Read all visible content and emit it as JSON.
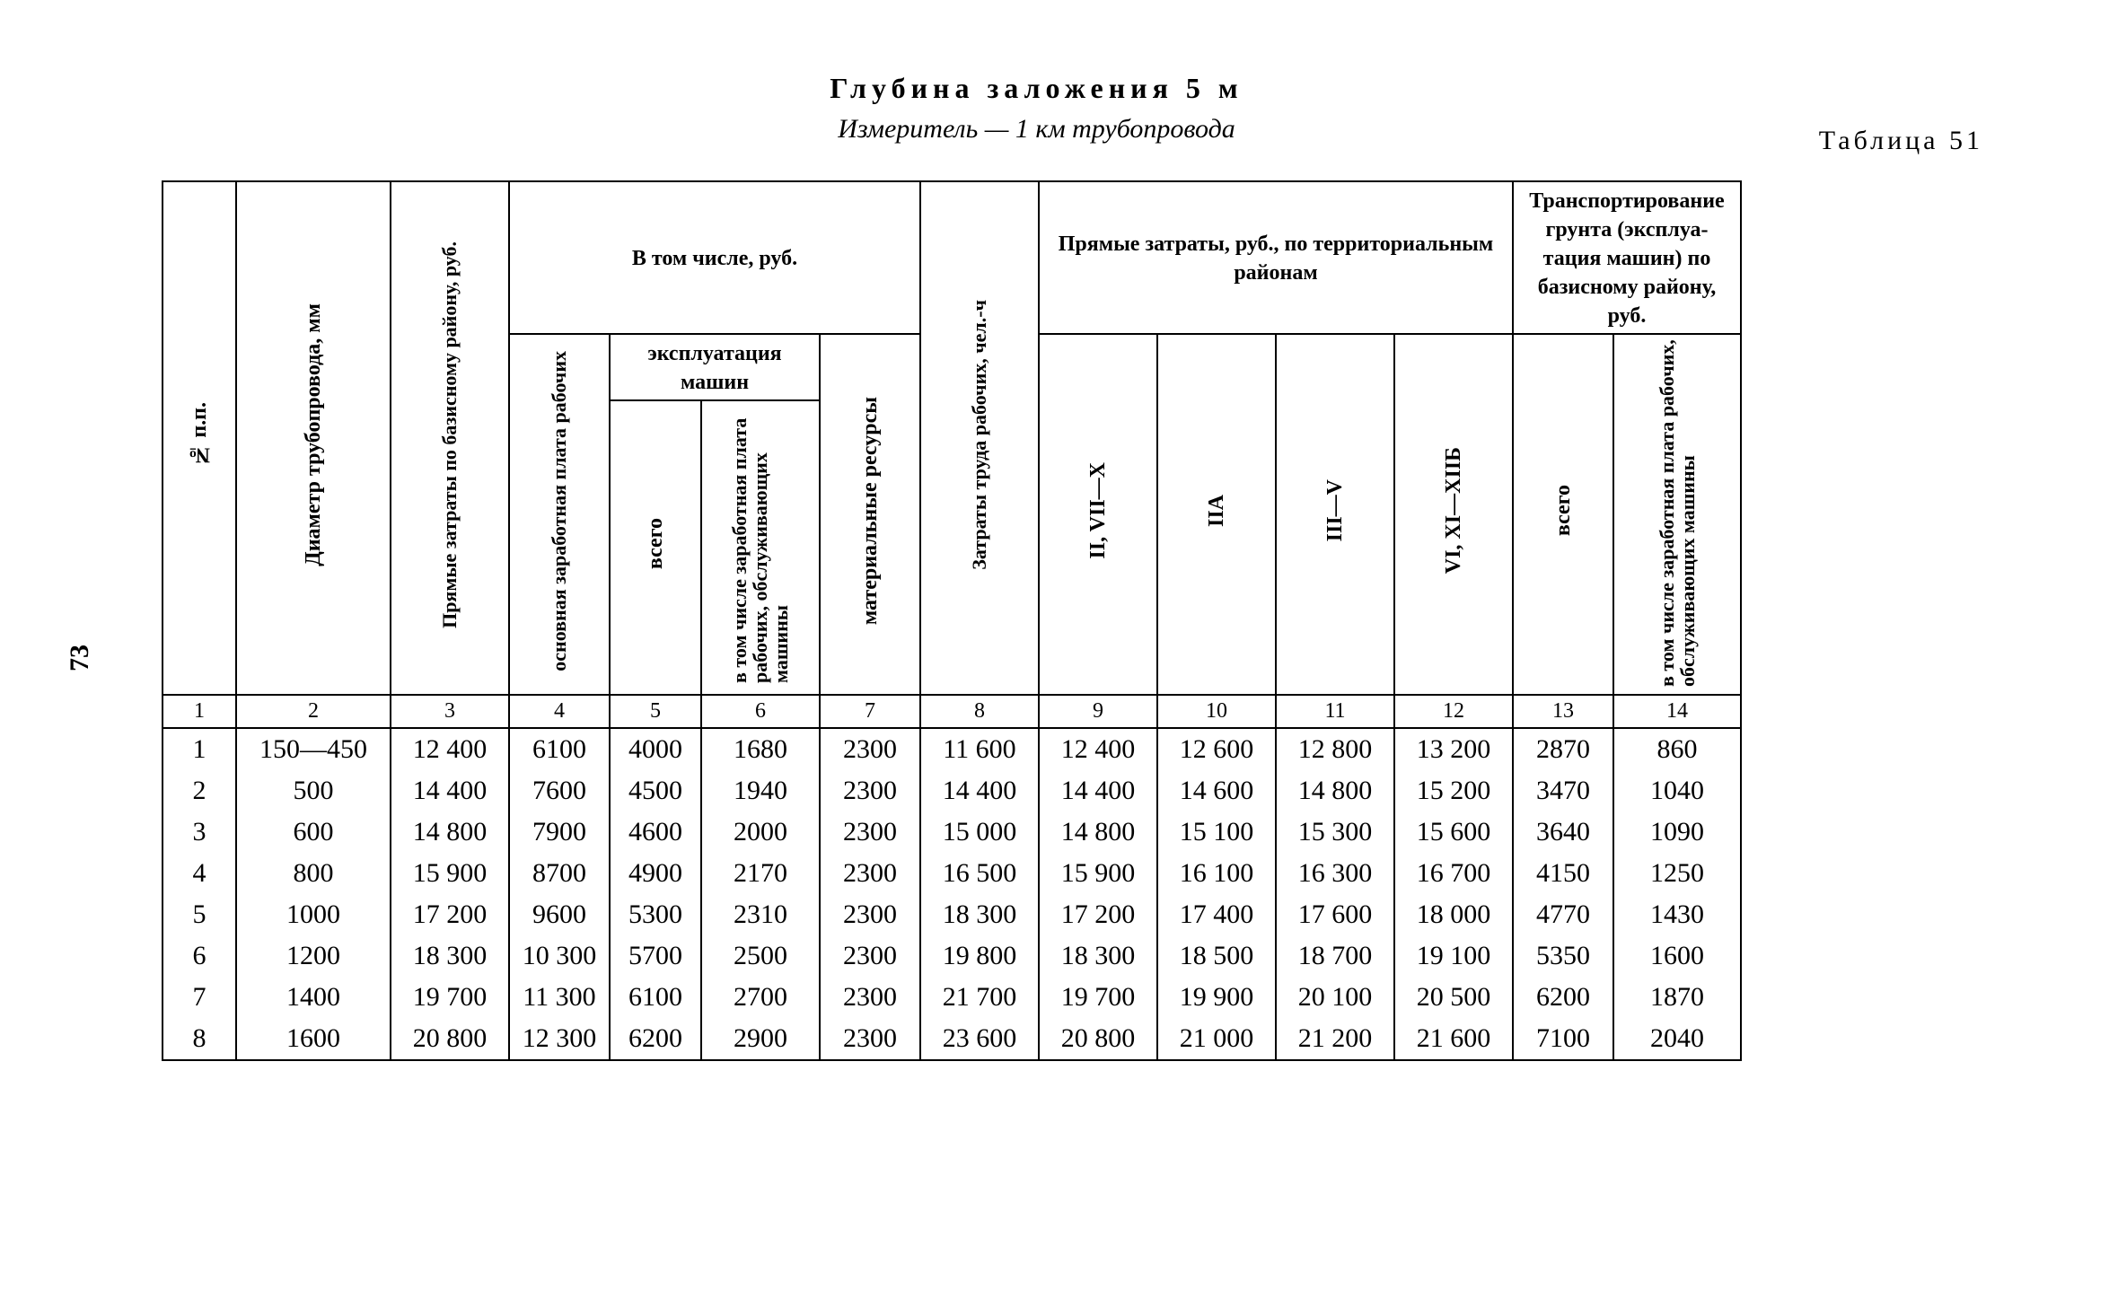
{
  "page_number": "73",
  "title_main": "Глубина заложения 5 м",
  "title_sub": "Измеритель — 1 км трубопровода",
  "table_label": "Таблица 51",
  "headers": {
    "group_vtom": "В том числе, руб.",
    "group_ekspl": "эксплуатация машин",
    "group_pryam": "Прямые затраты, руб., по территориальным районам",
    "group_transp": "Транспортирование грунта (эксплуа­тация машин) по базисному району, руб.",
    "c1": "№ п.п.",
    "c2": "Диаметр трубопровода, мм",
    "c3": "Прямые затраты по базисному району, руб.",
    "c4": "основная заработная плата рабочих",
    "c5": "всего",
    "c6": "в том числе заработ­ная плата рабочих, обслуживающих машины",
    "c7": "материальные ресурсы",
    "c8": "Затраты труда рабочих, чел.-ч",
    "c9": "II, VII—X",
    "c10": "IIА",
    "c11": "III—V",
    "c12": "VI, XI—XIIБ",
    "c13": "всего",
    "c14": "в том числе заработ­ная плата рабочих, обслуживающих машины"
  },
  "colnums": [
    "1",
    "2",
    "3",
    "4",
    "5",
    "6",
    "7",
    "8",
    "9",
    "10",
    "11",
    "12",
    "13",
    "14"
  ],
  "rows": [
    [
      "1",
      "150—450",
      "12 400",
      "6100",
      "4000",
      "1680",
      "2300",
      "11 600",
      "12 400",
      "12 600",
      "12 800",
      "13 200",
      "2870",
      "860"
    ],
    [
      "2",
      "500",
      "14 400",
      "7600",
      "4500",
      "1940",
      "2300",
      "14 400",
      "14 400",
      "14 600",
      "14 800",
      "15 200",
      "3470",
      "1040"
    ],
    [
      "3",
      "600",
      "14 800",
      "7900",
      "4600",
      "2000",
      "2300",
      "15 000",
      "14 800",
      "15 100",
      "15 300",
      "15 600",
      "3640",
      "1090"
    ],
    [
      "4",
      "800",
      "15 900",
      "8700",
      "4900",
      "2170",
      "2300",
      "16 500",
      "15 900",
      "16 100",
      "16 300",
      "16 700",
      "4150",
      "1250"
    ],
    [
      "5",
      "1000",
      "17 200",
      "9600",
      "5300",
      "2310",
      "2300",
      "18 300",
      "17 200",
      "17 400",
      "17 600",
      "18 000",
      "4770",
      "1430"
    ],
    [
      "6",
      "1200",
      "18 300",
      "10 300",
      "5700",
      "2500",
      "2300",
      "19 800",
      "18 300",
      "18 500",
      "18 700",
      "19 100",
      "5350",
      "1600"
    ],
    [
      "7",
      "1400",
      "19 700",
      "11 300",
      "6100",
      "2700",
      "2300",
      "21 700",
      "19 700",
      "19 900",
      "20 100",
      "20 500",
      "6200",
      "1870"
    ],
    [
      "8",
      "1600",
      "20 800",
      "12 300",
      "6200",
      "2900",
      "2300",
      "23 600",
      "20 800",
      "21 000",
      "21 200",
      "21 600",
      "7100",
      "2040"
    ]
  ]
}
